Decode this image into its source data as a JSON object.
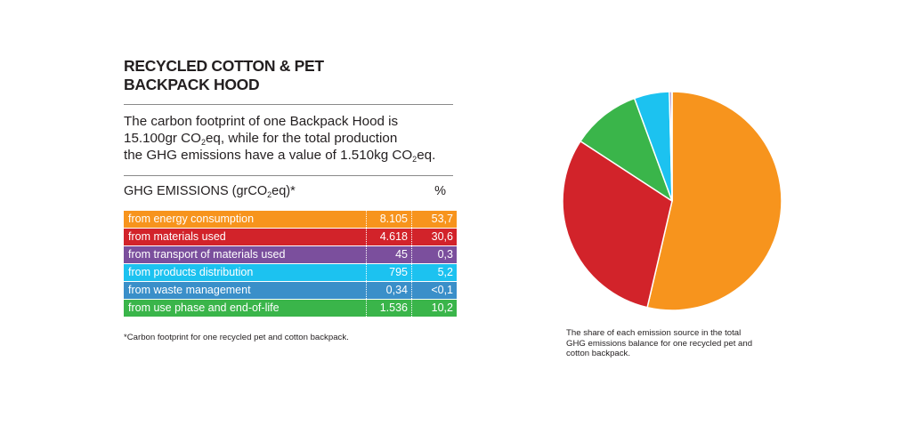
{
  "title": {
    "line1": "RECYCLED COTTON & PET",
    "line2": "BACKPACK HOOD"
  },
  "intro": {
    "line1": "The carbon footprint of one Backpack Hood is",
    "line2_pre": "15.100gr CO",
    "line2_sub": "2",
    "line2_post": "eq, while for the total production",
    "line3_pre": "the GHG emissions have a value of 1.510kg CO",
    "line3_sub": "2",
    "line3_post": "eq."
  },
  "table_header": {
    "label_pre": "GHG EMISSIONS (grCO",
    "label_sub": "2",
    "label_post": "eq)*",
    "percent": "%"
  },
  "rows": [
    {
      "label": "from energy consumption",
      "value": "8.105",
      "percent": "53,7",
      "color": "#f7941d"
    },
    {
      "label": "from materials used",
      "value": "4.618",
      "percent": "30,6",
      "color": "#d2232a"
    },
    {
      "label": "from transport of materials used",
      "value": "45",
      "percent": "0,3",
      "color": "#7b4f9d"
    },
    {
      "label": "from products distribution",
      "value": "795",
      "percent": "5,2",
      "color": "#1cc2f0"
    },
    {
      "label": "from waste management",
      "value": "0,34",
      "percent": "<0,1",
      "color": "#3a8fc9"
    },
    {
      "label": "from use phase and end-of-life",
      "value": "1.536",
      "percent": "10,2",
      "color": "#3ab54a"
    }
  ],
  "footnote": "*Carbon footprint for one recycled pet and cotton backpack.",
  "caption": {
    "line1": "The share of each emission source in the total",
    "line2": "GHG emissions balance for one recycled pet and",
    "line3": "cotton backpack."
  },
  "chart_data": {
    "type": "pie",
    "title": "",
    "categories": [
      "from energy consumption",
      "from materials used",
      "from use phase and end-of-life",
      "from products distribution",
      "from transport of materials used",
      "from waste management"
    ],
    "values": [
      53.7,
      30.6,
      10.2,
      5.2,
      0.3,
      0.1
    ],
    "colors": [
      "#f7941d",
      "#d2232a",
      "#3ab54a",
      "#1cc2f0",
      "#7b4f9d",
      "#3a8fc9"
    ],
    "start": "12 o'clock",
    "direction": "clockwise",
    "legend": "none"
  }
}
